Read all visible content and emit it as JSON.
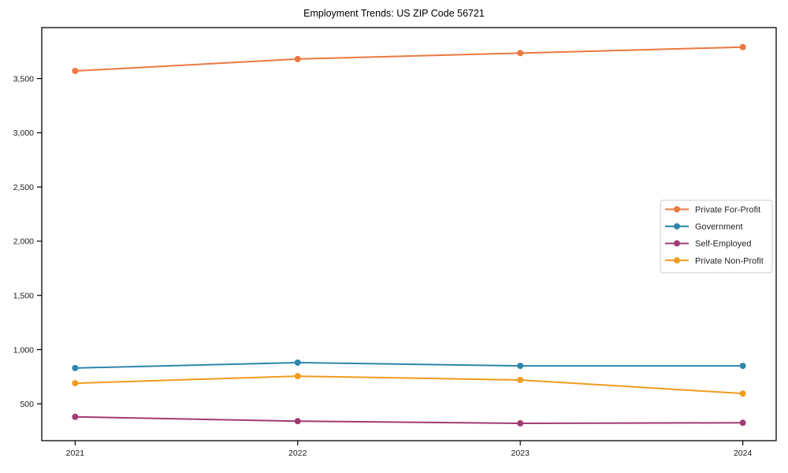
{
  "page": {
    "title": "Employment Trends: US ZIP Code 56721"
  },
  "chart_data": {
    "type": "line",
    "title": "Employment Trends: US ZIP Code 56721",
    "xlabel": "",
    "ylabel": "",
    "x": [
      2021,
      2022,
      2023,
      2024
    ],
    "x_tick_labels": [
      "2021",
      "2022",
      "2023",
      "2024"
    ],
    "y_tick_values": [
      500,
      1000,
      1500,
      2000,
      2500,
      3000,
      3500
    ],
    "y_tick_labels": [
      "500",
      "1,000",
      "1,500",
      "2,000",
      "2,500",
      "3,000",
      "3,500"
    ],
    "xlim": [
      2020.85,
      2024.15
    ],
    "ylim": [
      160,
      3970
    ],
    "grid": false,
    "legend_position": "center-right",
    "frame_color": "#000000",
    "tick_label_color": "#1a1a1a",
    "legend_border_color": "#cccccc",
    "series": [
      {
        "name": "Private For-Profit",
        "color": "#EB7841",
        "values": [
          3570,
          3680,
          3735,
          3790
        ]
      },
      {
        "name": "Government",
        "color": "#2E86AB",
        "values": [
          830,
          880,
          850,
          850
        ]
      },
      {
        "name": "Self-Employed",
        "color": "#A23B72",
        "values": [
          380,
          340,
          320,
          325
        ]
      },
      {
        "name": "Private Non-Profit",
        "color": "#F09B1F",
        "values": [
          690,
          755,
          720,
          595
        ]
      }
    ]
  }
}
